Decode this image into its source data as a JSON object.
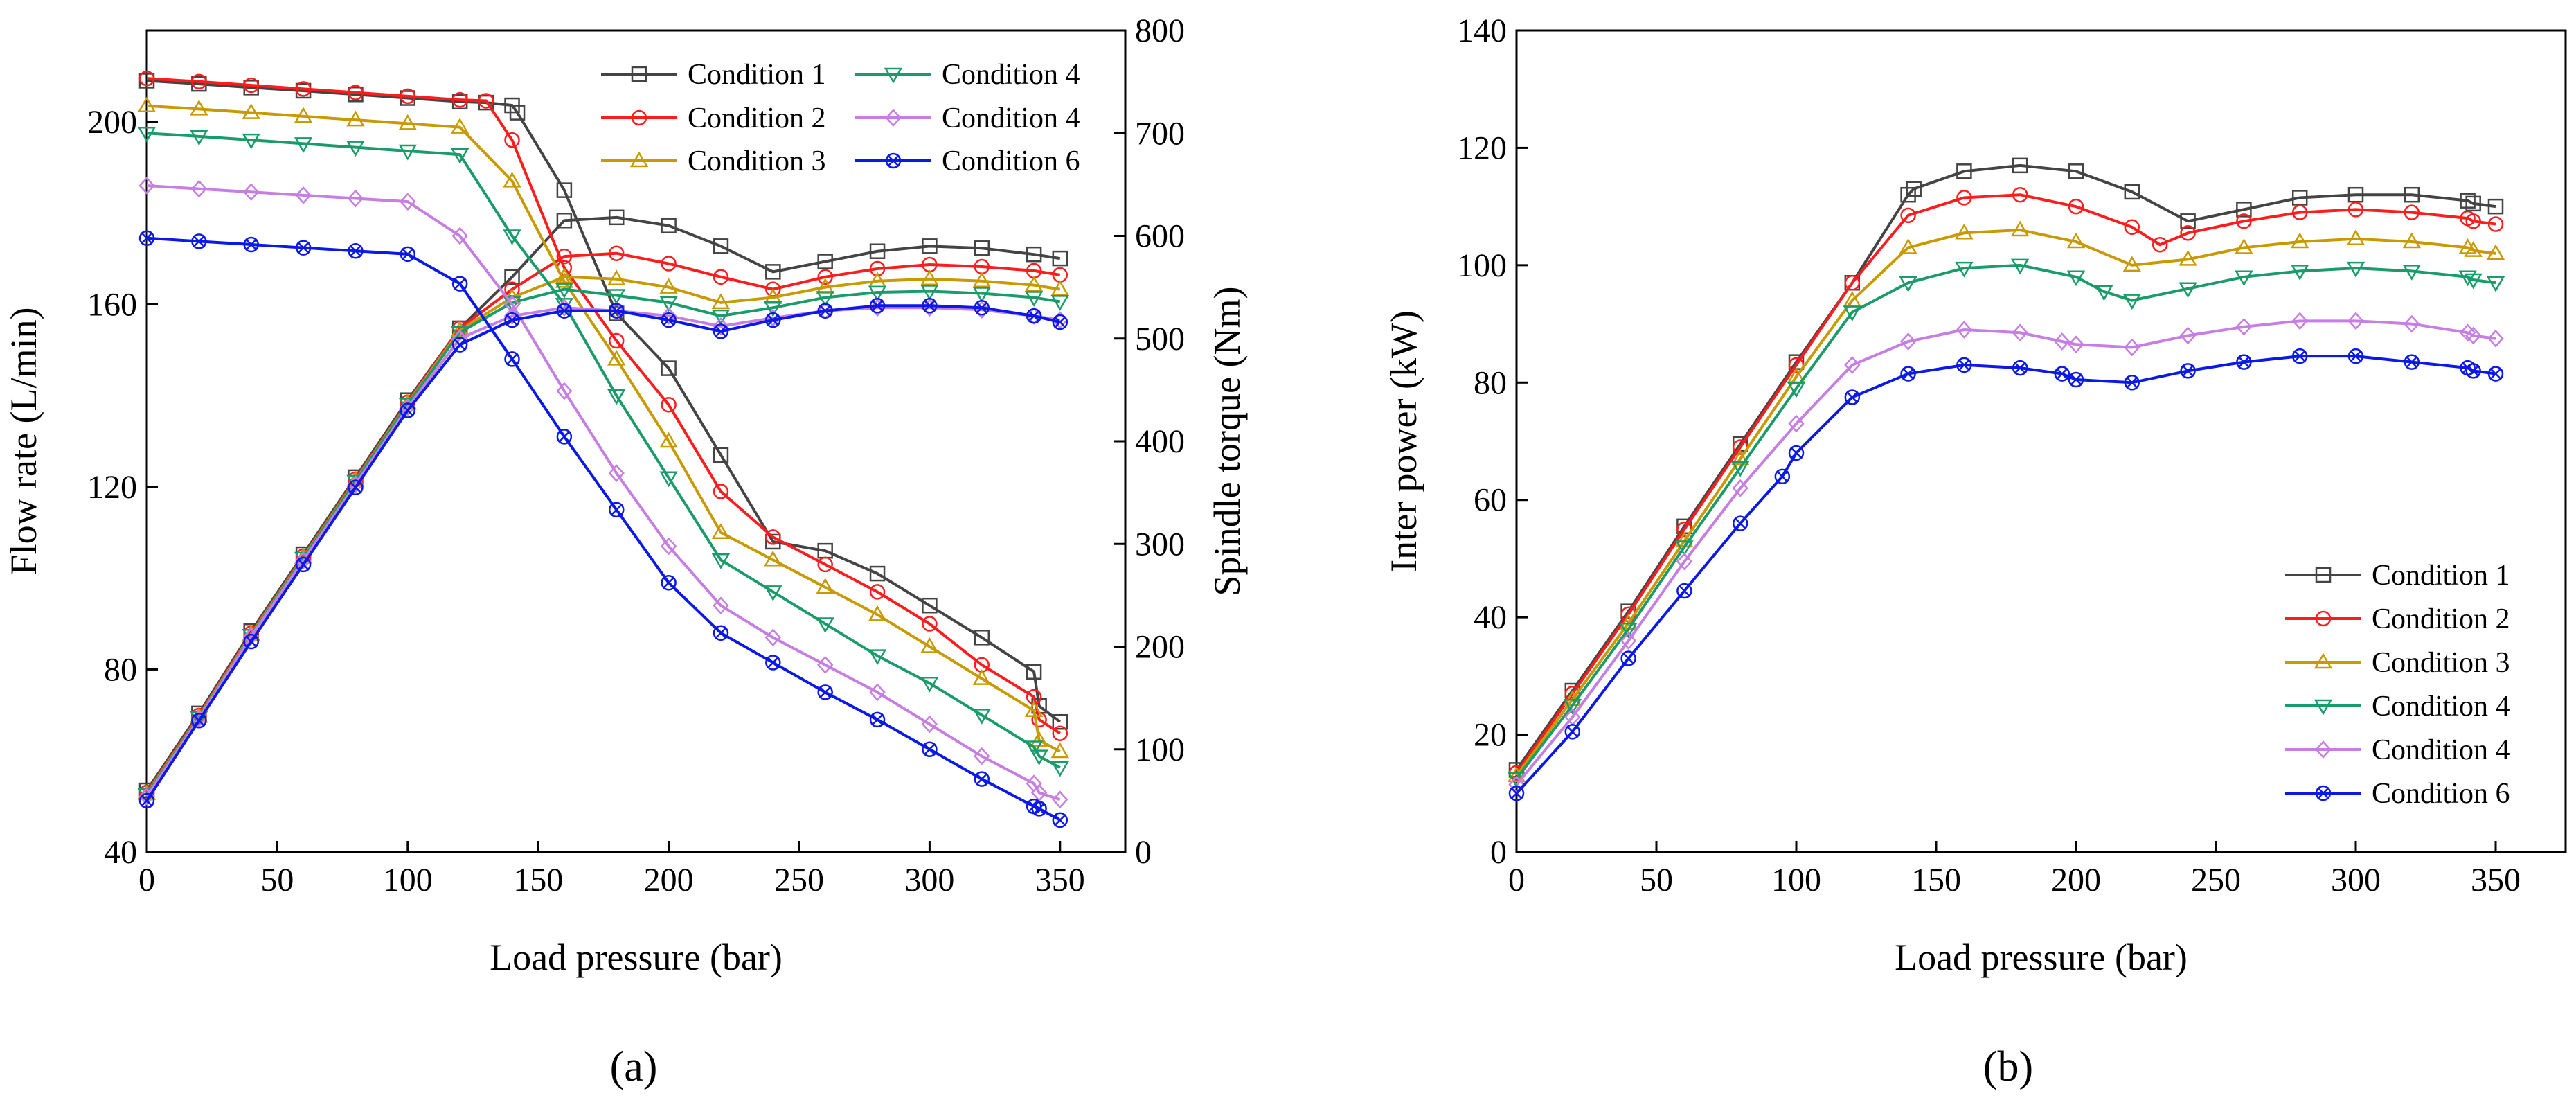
{
  "figure": {
    "caption_a": "(a)",
    "caption_b": "(b)"
  },
  "chart_data": [
    {
      "type": "line",
      "panel": "a",
      "xlabel": "Load pressure (bar)",
      "ylabel": "Flow rate (L/min)",
      "y2label": "Spindle torque (Nm)",
      "xlim": [
        0,
        375
      ],
      "ylim": [
        40,
        220
      ],
      "y2lim": [
        0,
        800
      ],
      "xticks": [
        0,
        50,
        100,
        150,
        200,
        250,
        300,
        350
      ],
      "yticks": [
        40,
        80,
        120,
        160,
        200
      ],
      "y2ticks": [
        0,
        100,
        200,
        300,
        400,
        500,
        600,
        700,
        800
      ],
      "grid": false,
      "legend_position": "top-right",
      "legend": [
        "Condition 1",
        "Condition 2",
        "Condition 3",
        "Condition 4",
        "Condition 4",
        "Condition 6"
      ],
      "series": [
        {
          "name": "Condition 1",
          "color": "#444444",
          "marker": "square",
          "axis": "left",
          "x": [
            0,
            20,
            40,
            60,
            80,
            100,
            120,
            130,
            140,
            142,
            160,
            180,
            200,
            220,
            240,
            260,
            280,
            300,
            320,
            340,
            342,
            350
          ],
          "values": [
            209,
            208.3,
            207.5,
            206.8,
            206,
            205.2,
            204.4,
            204.2,
            203.6,
            202,
            185,
            158,
            146,
            127,
            108,
            106,
            101,
            94,
            87,
            79.5,
            72,
            68.5
          ]
        },
        {
          "name": "Condition 1 torque",
          "color": "#444444",
          "marker": "square",
          "axis": "right",
          "x": [
            0,
            20,
            40,
            60,
            80,
            100,
            120,
            140,
            160,
            180,
            200,
            220,
            240,
            260,
            280,
            300,
            320,
            340,
            350
          ],
          "values": [
            60,
            135,
            215,
            290,
            365,
            440,
            510,
            560,
            615,
            618,
            610,
            590,
            565,
            575,
            585,
            590,
            588,
            582,
            578
          ]
        },
        {
          "name": "Condition 2",
          "color": "#ff1c1c",
          "marker": "circle",
          "axis": "left",
          "x": [
            0,
            20,
            40,
            60,
            80,
            100,
            120,
            130,
            140,
            160,
            180,
            200,
            220,
            240,
            260,
            280,
            300,
            320,
            340,
            342,
            350
          ],
          "values": [
            209.5,
            208.8,
            208,
            207.2,
            206.4,
            205.6,
            204.8,
            204.6,
            196,
            168,
            152,
            138,
            119,
            109,
            103,
            97,
            90,
            81,
            74,
            69,
            66
          ]
        },
        {
          "name": "Condition 2 torque",
          "color": "#ff1c1c",
          "marker": "circle",
          "axis": "right",
          "x": [
            0,
            20,
            40,
            60,
            80,
            100,
            120,
            140,
            160,
            180,
            200,
            220,
            240,
            260,
            280,
            300,
            320,
            340,
            350
          ],
          "values": [
            58,
            133,
            213,
            288,
            363,
            438,
            510,
            548,
            580,
            583,
            573,
            560,
            548,
            560,
            568,
            572,
            570,
            566,
            562
          ]
        },
        {
          "name": "Condition 3",
          "color": "#c89a00",
          "marker": "triangle-up",
          "axis": "left",
          "x": [
            0,
            20,
            40,
            60,
            80,
            100,
            120,
            140,
            160,
            180,
            200,
            220,
            240,
            260,
            280,
            300,
            320,
            340,
            342,
            350
          ],
          "values": [
            203.5,
            202.8,
            202,
            201.2,
            200.4,
            199.6,
            198.8,
            187,
            165,
            148,
            130,
            110,
            104,
            98,
            92,
            85,
            78,
            71,
            64.5,
            62
          ]
        },
        {
          "name": "Condition 3 torque",
          "color": "#c89a00",
          "marker": "triangle-up",
          "axis": "right",
          "x": [
            0,
            20,
            40,
            60,
            80,
            100,
            120,
            140,
            160,
            180,
            200,
            220,
            240,
            260,
            280,
            300,
            320,
            340,
            350
          ],
          "values": [
            57,
            132,
            212,
            287,
            362,
            437,
            508,
            540,
            560,
            558,
            550,
            535,
            540,
            550,
            556,
            558,
            556,
            552,
            548
          ]
        },
        {
          "name": "Condition 4",
          "color": "#1a9c6a",
          "marker": "triangle-down",
          "axis": "left",
          "x": [
            0,
            20,
            40,
            60,
            80,
            100,
            120,
            140,
            160,
            180,
            200,
            220,
            240,
            260,
            280,
            300,
            320,
            340,
            342,
            350
          ],
          "values": [
            197.5,
            196.8,
            196,
            195.2,
            194.4,
            193.6,
            192.8,
            175,
            160,
            140,
            122,
            104,
            97,
            90,
            83,
            77,
            70,
            63,
            61,
            58.5
          ]
        },
        {
          "name": "Condition 4 torque",
          "color": "#1a9c6a",
          "marker": "triangle-down",
          "axis": "right",
          "x": [
            0,
            20,
            40,
            60,
            80,
            100,
            120,
            140,
            160,
            180,
            200,
            220,
            240,
            260,
            280,
            300,
            320,
            340,
            350
          ],
          "values": [
            56,
            131,
            211,
            286,
            361,
            436,
            506,
            535,
            548,
            542,
            535,
            522,
            530,
            540,
            545,
            546,
            544,
            540,
            536
          ]
        },
        {
          "name": "Condition 4",
          "color": "#c77ee3",
          "marker": "diamond",
          "axis": "left",
          "x": [
            0,
            20,
            40,
            60,
            80,
            100,
            120,
            140,
            160,
            180,
            200,
            220,
            240,
            260,
            280,
            300,
            320,
            340,
            342,
            350
          ],
          "values": [
            186,
            185.3,
            184.6,
            183.9,
            183.2,
            182.5,
            175,
            160,
            141,
            123,
            107,
            94,
            87,
            81,
            75,
            68,
            61,
            55,
            53,
            51.5
          ]
        },
        {
          "name": "Condition 4 torque",
          "color": "#c77ee3",
          "marker": "diamond",
          "axis": "right",
          "x": [
            0,
            20,
            40,
            60,
            80,
            100,
            120,
            140,
            160,
            180,
            200,
            220,
            240,
            260,
            280,
            300,
            320,
            340,
            350
          ],
          "values": [
            54,
            130,
            210,
            284,
            358,
            433,
            500,
            522,
            530,
            527,
            522,
            512,
            520,
            527,
            530,
            530,
            528,
            522,
            518
          ]
        },
        {
          "name": "Condition 6",
          "color": "#0a18e8",
          "marker": "star-circle",
          "axis": "left",
          "x": [
            0,
            20,
            40,
            60,
            80,
            100,
            120,
            140,
            160,
            180,
            200,
            220,
            240,
            260,
            280,
            300,
            320,
            340,
            342,
            350
          ],
          "values": [
            174.5,
            173.8,
            173.1,
            172.4,
            171.7,
            171,
            164.5,
            148,
            131,
            115,
            99,
            88,
            81.5,
            75,
            69,
            62.5,
            56,
            50,
            49.5,
            47
          ]
        },
        {
          "name": "Condition 6 torque",
          "color": "#0a18e8",
          "marker": "star-circle",
          "axis": "right",
          "x": [
            0,
            20,
            40,
            60,
            80,
            100,
            120,
            140,
            160,
            180,
            200,
            220,
            240,
            260,
            280,
            300,
            320,
            340,
            350
          ],
          "values": [
            50,
            128,
            205,
            280,
            355,
            430,
            494,
            518,
            527,
            527,
            518,
            507,
            518,
            527,
            532,
            532,
            530,
            522,
            516
          ]
        }
      ]
    },
    {
      "type": "line",
      "panel": "b",
      "xlabel": "Load pressure (bar)",
      "ylabel": "Inter power (kW)",
      "xlim": [
        0,
        375
      ],
      "ylim": [
        0,
        140
      ],
      "xticks": [
        0,
        50,
        100,
        150,
        200,
        250,
        300,
        350
      ],
      "yticks": [
        0,
        20,
        40,
        60,
        80,
        100,
        120,
        140
      ],
      "grid": false,
      "legend_position": "bottom-right",
      "legend": [
        "Condition 1",
        "Condition 2",
        "Condition 3",
        "Condition 4",
        "Condition 4",
        "Condition 6"
      ],
      "series": [
        {
          "name": "Condition 1",
          "color": "#444444",
          "marker": "square",
          "x": [
            0,
            20,
            40,
            60,
            80,
            100,
            120,
            140,
            142,
            160,
            180,
            200,
            220,
            240,
            260,
            280,
            300,
            320,
            340,
            342,
            350
          ],
          "values": [
            14,
            27.5,
            41,
            55.5,
            69.5,
            83.5,
            97,
            112,
            113,
            116,
            117,
            116,
            112.5,
            107.5,
            109.5,
            111.5,
            112,
            112,
            111,
            110.5,
            110
          ]
        },
        {
          "name": "Condition 2",
          "color": "#ff1c1c",
          "marker": "circle",
          "x": [
            0,
            20,
            40,
            60,
            80,
            100,
            120,
            140,
            160,
            180,
            200,
            220,
            230,
            240,
            260,
            280,
            300,
            320,
            340,
            342,
            350
          ],
          "values": [
            13.5,
            27,
            40.5,
            55,
            69,
            83,
            97,
            108.5,
            111.5,
            112,
            110,
            106.5,
            103.5,
            105.5,
            107.5,
            109,
            109.5,
            109,
            108,
            107.5,
            107
          ]
        },
        {
          "name": "Condition 3",
          "color": "#c89a00",
          "marker": "triangle-up",
          "x": [
            0,
            20,
            40,
            60,
            80,
            100,
            120,
            140,
            160,
            180,
            200,
            220,
            240,
            260,
            280,
            300,
            320,
            340,
            342,
            350
          ],
          "values": [
            13,
            26,
            39,
            53,
            67,
            81,
            94,
            103,
            105.5,
            106,
            104,
            100,
            101,
            103,
            104,
            104.5,
            104,
            103,
            102.5,
            102
          ]
        },
        {
          "name": "Condition 4",
          "color": "#1a9c6a",
          "marker": "triangle-down",
          "x": [
            0,
            20,
            40,
            60,
            80,
            100,
            120,
            140,
            160,
            180,
            200,
            210,
            220,
            240,
            260,
            280,
            300,
            320,
            340,
            342,
            350
          ],
          "values": [
            12.5,
            25,
            38,
            52,
            65.5,
            79,
            92,
            97,
            99.5,
            100,
            98,
            95.5,
            94,
            96,
            98,
            99,
            99.5,
            99,
            98,
            97.5,
            97
          ]
        },
        {
          "name": "Condition 4",
          "color": "#c77ee3",
          "marker": "diamond",
          "x": [
            0,
            20,
            40,
            60,
            80,
            100,
            120,
            140,
            160,
            180,
            195,
            200,
            220,
            240,
            260,
            280,
            300,
            320,
            340,
            342,
            350
          ],
          "values": [
            11.5,
            23,
            36,
            49.5,
            62,
            73,
            83,
            87,
            89,
            88.5,
            87,
            86.5,
            86,
            88,
            89.5,
            90.5,
            90.5,
            90,
            88.5,
            88,
            87.5
          ]
        },
        {
          "name": "Condition 6",
          "color": "#0a18e8",
          "marker": "star-circle",
          "x": [
            0,
            20,
            40,
            60,
            80,
            95,
            100,
            120,
            140,
            160,
            180,
            195,
            200,
            220,
            240,
            260,
            280,
            300,
            320,
            340,
            342,
            350
          ],
          "values": [
            10,
            20.5,
            33,
            44.5,
            56,
            64,
            68,
            77.5,
            81.5,
            83,
            82.5,
            81.5,
            80.5,
            80,
            82,
            83.5,
            84.5,
            84.5,
            83.5,
            82.5,
            82,
            81.5
          ]
        }
      ]
    }
  ]
}
